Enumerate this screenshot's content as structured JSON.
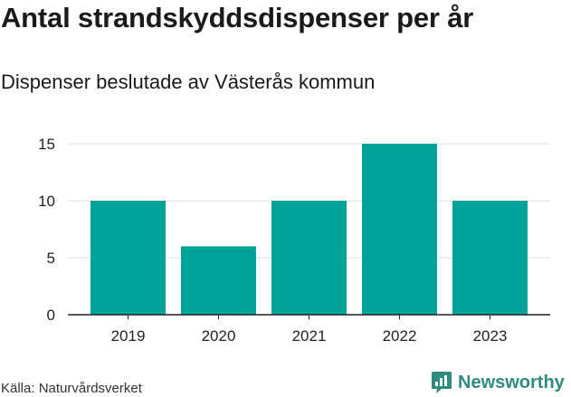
{
  "colors": {
    "bar": "#00a398",
    "grid": "#dddddd",
    "axis": "#222222",
    "brand": "#2e8c7e"
  },
  "chart_data": {
    "type": "bar",
    "title": "Antal strandskyddsdispenser per år",
    "subtitle": "Dispenser beslutade av Västerås kommun",
    "categories": [
      "2019",
      "2020",
      "2021",
      "2022",
      "2023"
    ],
    "values": [
      10,
      6,
      10,
      15,
      10
    ],
    "yticks": [
      0,
      5,
      10,
      15
    ],
    "ylim": [
      0,
      15
    ],
    "xlabel": "",
    "ylabel": "",
    "grid": true
  },
  "footer": {
    "source": "Källa: Naturvårdsverket",
    "brand_name": "Newsworthy",
    "brand_icon": "newsworthy-logo-icon"
  }
}
